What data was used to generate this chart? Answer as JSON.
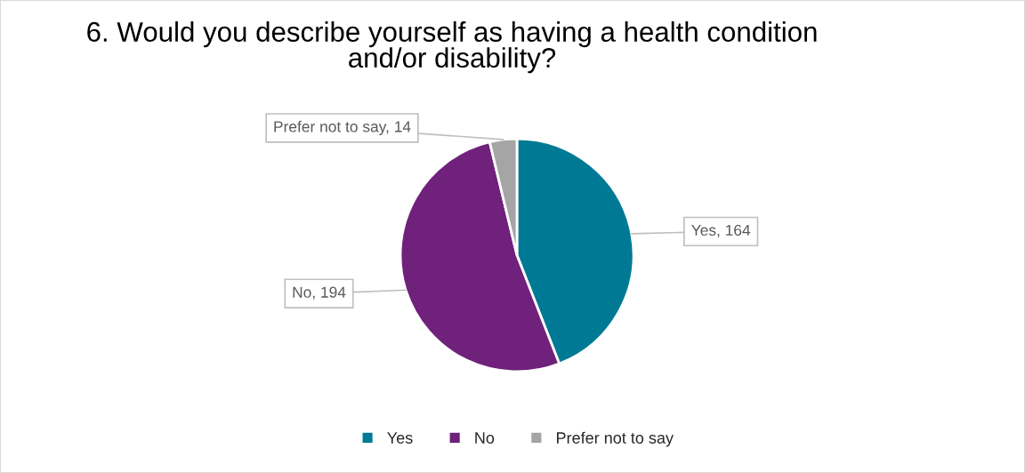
{
  "chart_data": {
    "type": "pie",
    "title": "6. Would you describe yourself as having a health condition\nand/or disability?",
    "categories": [
      "Yes",
      "No",
      "Prefer not to say"
    ],
    "values": [
      164,
      194,
      14
    ],
    "colors": [
      "#007a94",
      "#6f217b",
      "#a5a5a5"
    ],
    "value_labels": [
      "Yes, 164",
      "No, 194",
      "Prefer not to say, 14"
    ],
    "legend": "bottom"
  }
}
